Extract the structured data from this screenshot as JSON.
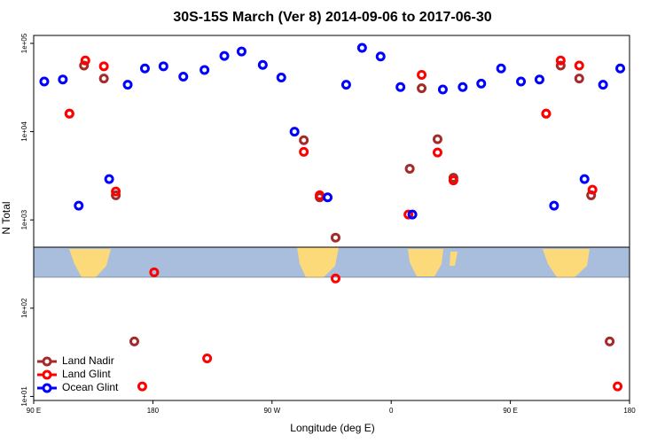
{
  "chart_data": {
    "type": "scatter",
    "title": "30S-15S March (Ver 8)   2014-09-06 to 2017-06-30",
    "x_label": "Longitude (deg E)",
    "y_label": "N Total",
    "xlim": [
      90,
      540
    ],
    "xticks": [
      {
        "value": 90,
        "label": "90 E"
      },
      {
        "value": 180,
        "label": "180"
      },
      {
        "value": 270,
        "label": "90 W"
      },
      {
        "value": 360,
        "label": "0"
      },
      {
        "value": 450,
        "label": "90 E"
      },
      {
        "value": 540,
        "label": "180"
      }
    ],
    "ylim": [
      9,
      123000
    ],
    "yscale": "log",
    "yticks": [
      {
        "value": 10,
        "label": "1e+01"
      },
      {
        "value": 100,
        "label": "1e+02"
      },
      {
        "value": 1000,
        "label": "1e+03"
      },
      {
        "value": 10000,
        "label": "1e+04"
      },
      {
        "value": 100000,
        "label": "1e+05"
      }
    ],
    "legend": "bottom-left",
    "series": [
      {
        "name": "Land Nadir",
        "color": "#a52a2a",
        "x": [
          117,
          128,
          143,
          152,
          166,
          294,
          306,
          318,
          374,
          383,
          395,
          407,
          477,
          488,
          502,
          511,
          525
        ],
        "values": [
          16000,
          56000,
          40000,
          1900,
          42,
          8000,
          1800,
          630,
          3800,
          31000,
          8200,
          3000,
          16000,
          56000,
          40000,
          1900,
          42
        ]
      },
      {
        "name": "Land Glint",
        "color": "#ff0000",
        "x": [
          117,
          129,
          143,
          152,
          172,
          181,
          221,
          294,
          306,
          318,
          373,
          383,
          395,
          407,
          477,
          488,
          502,
          512,
          531
        ],
        "values": [
          16000,
          64000,
          55000,
          2100,
          13,
          255,
          27,
          5900,
          1900,
          217,
          1150,
          44000,
          5800,
          2800,
          16000,
          64000,
          56000,
          2200,
          13
        ]
      },
      {
        "name": "Ocean Glint",
        "color": "#0000ff",
        "x": [
          98,
          112,
          124,
          147,
          161,
          174,
          188,
          203,
          219,
          234,
          247,
          263,
          277,
          287,
          312,
          326,
          338,
          352,
          367,
          376,
          399,
          414,
          428,
          443,
          458,
          472,
          483,
          506,
          520,
          533
        ],
        "values": [
          37000,
          39000,
          1450,
          2900,
          34000,
          52000,
          55000,
          42000,
          50000,
          72000,
          81000,
          57000,
          41000,
          10000,
          1800,
          34000,
          89000,
          71000,
          32000,
          1150,
          30000,
          32000,
          35000,
          52000,
          37000,
          39000,
          1450,
          2900,
          34000,
          52000
        ]
      }
    ]
  }
}
